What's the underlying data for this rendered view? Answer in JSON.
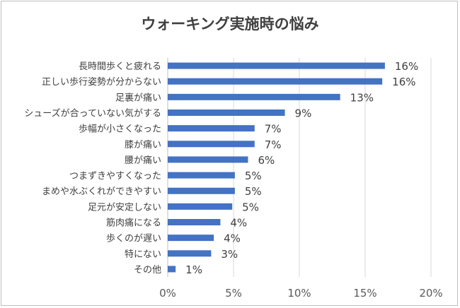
{
  "chart_data": {
    "type": "bar",
    "orientation": "horizontal",
    "title": "ウォーキング実施時の悩み",
    "categories": [
      "長時間歩くと疲れる",
      "正しい歩行姿勢が分からない",
      "足裏が痛い",
      "シューズが合っていない気がする",
      "歩幅が小さくなった",
      "膝が痛い",
      "腰が痛い",
      "つまずきやすくなった",
      "まめや水ぶくれができやすい",
      "足元が安定しない",
      "筋肉痛になる",
      "歩くのが遅い",
      "特にない",
      "その他"
    ],
    "values": [
      16.5,
      16.3,
      13.1,
      8.9,
      6.6,
      6.6,
      6.1,
      5.1,
      5.1,
      4.9,
      4.0,
      3.5,
      3.3,
      0.6
    ],
    "value_labels": [
      "16%",
      "16%",
      "13%",
      "9%",
      "7%",
      "7%",
      "6%",
      "5%",
      "5%",
      "5%",
      "4%",
      "4%",
      "3%",
      "1%"
    ],
    "x_ticks": [
      "0%",
      "5%",
      "10%",
      "15%",
      "20%"
    ],
    "xlim": [
      0,
      20
    ],
    "grid": true,
    "bar_color": "#4472c4",
    "grid_color": "#d9d9d9"
  }
}
